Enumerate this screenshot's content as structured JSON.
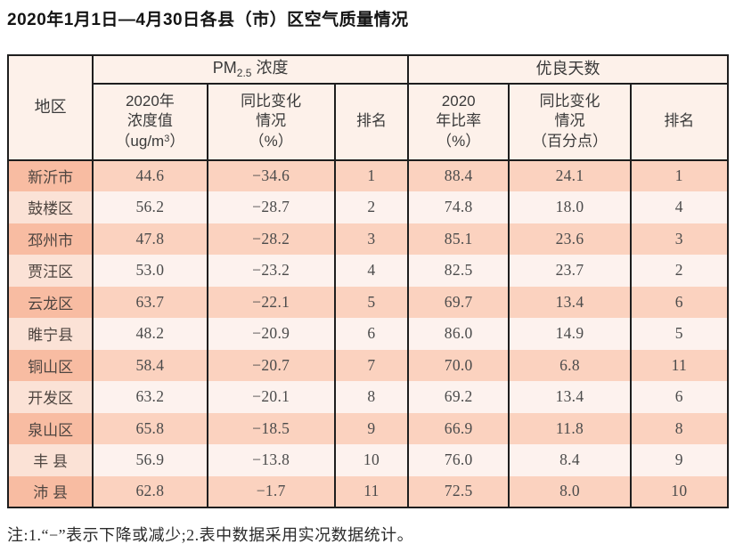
{
  "page": {
    "title": "2020年1月1日—4月30日各县（市）区空气质量情况",
    "note": "注:1.“−”表示下降或减少;2.表中数据采用实况数据统计。"
  },
  "colors": {
    "border": "#1e1e1e",
    "header_bg": "#fdf1ea",
    "odd_row_region_bg": "#f8bca2",
    "odd_row_cell_bg": "#fbd2bf",
    "even_row_region_bg": "#fbe2d6",
    "even_row_cell_bg": "#fdf2ee"
  },
  "table": {
    "region_header": "地区",
    "group_pm": {
      "prefix": "PM",
      "sub": "2.5",
      "suffix": " 浓度"
    },
    "group_days": "优良天数",
    "col_value": {
      "line1": "2020年",
      "line2": "浓度值",
      "unit_prefix": "（ug/m",
      "unit_sup": "3",
      "unit_suffix": "）"
    },
    "col_pm_change": {
      "line1": "同比变化",
      "line2": "情况",
      "line3": "（%）"
    },
    "col_pm_rank": "排名",
    "col_ratio": {
      "line1": "2020",
      "line2": "年比率",
      "line3": "（%）"
    },
    "col_days_change": {
      "line1": "同比变化",
      "line2": "情况",
      "line3": "（百分点）"
    },
    "col_days_rank": "排名"
  },
  "chart_data": {
    "type": "table",
    "title": "2020年1月1日—4月30日各县（市）区空气质量情况",
    "column_keys": [
      "地区",
      "PM2.5浓度 2020年浓度值（ug/m3）",
      "PM2.5浓度 同比变化情况（%）",
      "PM2.5浓度 排名",
      "优良天数 2020年比率（%）",
      "优良天数 同比变化情况（百分点）",
      "优良天数 排名"
    ],
    "rows": [
      [
        "新沂市",
        "44.6",
        "−34.6",
        "1",
        "88.4",
        "24.1",
        "1"
      ],
      [
        "鼓楼区",
        "56.2",
        "−28.7",
        "2",
        "74.8",
        "18.0",
        "4"
      ],
      [
        "邳州市",
        "47.8",
        "−28.2",
        "3",
        "85.1",
        "23.6",
        "3"
      ],
      [
        "贾汪区",
        "53.0",
        "−23.2",
        "4",
        "82.5",
        "23.7",
        "2"
      ],
      [
        "云龙区",
        "63.7",
        "−22.1",
        "5",
        "69.7",
        "13.4",
        "6"
      ],
      [
        "睢宁县",
        "48.2",
        "−20.9",
        "6",
        "86.0",
        "14.9",
        "5"
      ],
      [
        "铜山区",
        "58.4",
        "−20.7",
        "7",
        "70.0",
        "6.8",
        "11"
      ],
      [
        "开发区",
        "63.2",
        "−20.1",
        "8",
        "69.2",
        "13.4",
        "6"
      ],
      [
        "泉山区",
        "65.8",
        "−18.5",
        "9",
        "66.9",
        "11.8",
        "8"
      ],
      [
        "丰 县",
        "56.9",
        "−13.8",
        "10",
        "76.0",
        "8.4",
        "9"
      ],
      [
        "沛 县",
        "62.8",
        "−1.7",
        "11",
        "72.5",
        "8.0",
        "10"
      ]
    ],
    "notes": "注:1.“−”表示下降或减少;2.表中数据采用实况数据统计。"
  }
}
